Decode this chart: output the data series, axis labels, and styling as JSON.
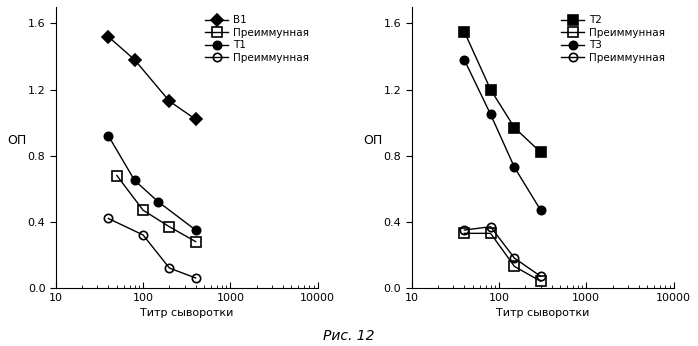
{
  "left": {
    "series": [
      {
        "label": "B1",
        "x": [
          40,
          80,
          200,
          400
        ],
        "y": [
          1.52,
          1.38,
          1.13,
          1.02
        ],
        "marker": "D",
        "fillstyle": "full",
        "color": "black",
        "markersize": 6
      },
      {
        "label": "Преиммунная",
        "x": [
          50,
          100,
          200,
          400
        ],
        "y": [
          0.68,
          0.47,
          0.37,
          0.28
        ],
        "marker": "s",
        "fillstyle": "none",
        "color": "black",
        "markersize": 7
      },
      {
        "label": "Т1",
        "x": [
          40,
          80,
          150,
          400
        ],
        "y": [
          0.92,
          0.65,
          0.52,
          0.35
        ],
        "marker": "o",
        "fillstyle": "full",
        "color": "black",
        "markersize": 6
      },
      {
        "label": "Преиммунная",
        "x": [
          40,
          100,
          200,
          400
        ],
        "y": [
          0.42,
          0.32,
          0.12,
          0.06
        ],
        "marker": "o",
        "fillstyle": "none",
        "color": "black",
        "markersize": 6
      }
    ],
    "ylabel": "ОП",
    "xlabel": "Титр сыворотки",
    "ylim": [
      0,
      1.7
    ],
    "yticks": [
      0,
      0.4,
      0.8,
      1.2,
      1.6
    ],
    "xlim": [
      10,
      10000
    ]
  },
  "right": {
    "series": [
      {
        "label": "Т2",
        "x": [
          40,
          80,
          150,
          300
        ],
        "y": [
          1.55,
          1.2,
          0.97,
          0.82
        ],
        "marker": "s",
        "fillstyle": "full",
        "color": "black",
        "markersize": 7
      },
      {
        "label": "Преиммунная",
        "x": [
          40,
          80,
          150,
          300
        ],
        "y": [
          0.33,
          0.33,
          0.13,
          0.04
        ],
        "marker": "s",
        "fillstyle": "none",
        "color": "black",
        "markersize": 7
      },
      {
        "label": "Т3",
        "x": [
          40,
          80,
          150,
          300
        ],
        "y": [
          1.38,
          1.05,
          0.73,
          0.47
        ],
        "marker": "o",
        "fillstyle": "full",
        "color": "black",
        "markersize": 6
      },
      {
        "label": "Преиммунная",
        "x": [
          40,
          80,
          150,
          300
        ],
        "y": [
          0.35,
          0.37,
          0.18,
          0.07
        ],
        "marker": "o",
        "fillstyle": "none",
        "color": "black",
        "markersize": 6
      }
    ],
    "ylabel": "ОП",
    "xlabel": "Титр сыворотки",
    "ylim": [
      0,
      1.7
    ],
    "yticks": [
      0,
      0.4,
      0.8,
      1.2,
      1.6
    ],
    "xlim": [
      10,
      10000
    ]
  },
  "figure_label": "Рис. 12",
  "background_color": "#ffffff",
  "fig_width": 6.98,
  "fig_height": 3.46,
  "dpi": 100
}
